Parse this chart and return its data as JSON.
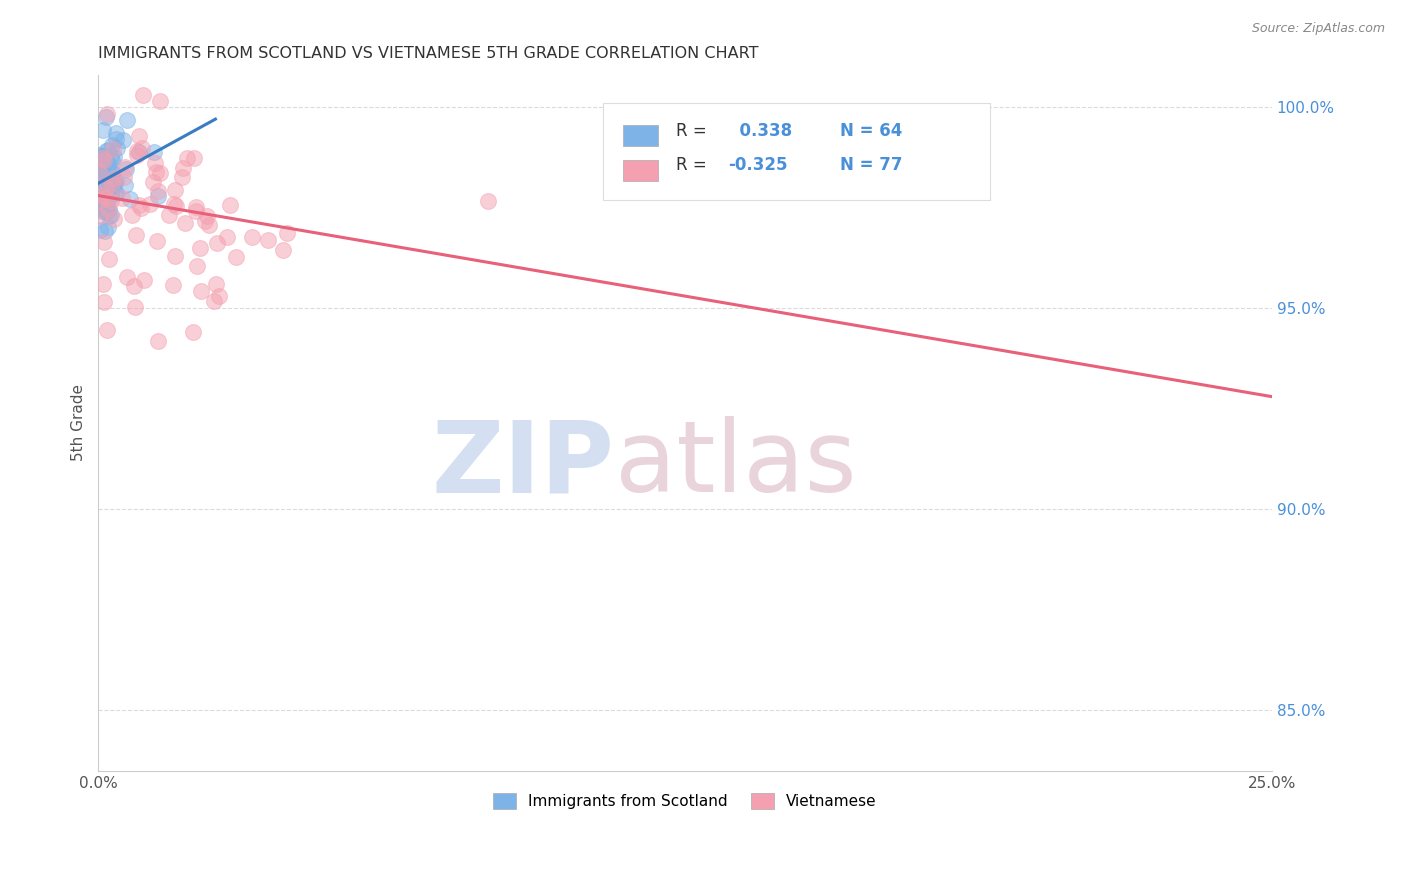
{
  "title": "IMMIGRANTS FROM SCOTLAND VS VIETNAMESE 5TH GRADE CORRELATION CHART",
  "source": "Source: ZipAtlas.com",
  "ylabel": "5th Grade",
  "xmin": 0.0,
  "xmax": 0.25,
  "ymin": 0.835,
  "ymax": 1.008,
  "scotland_R": 0.338,
  "scotland_N": 64,
  "vietnamese_R": -0.325,
  "vietnamese_N": 77,
  "scotland_color": "#7EB3E8",
  "vietnamese_color": "#F4A0B0",
  "scotland_line_color": "#3A7CC4",
  "vietnamese_line_color": "#E8607A",
  "legend_label_scotland": "Immigrants from Scotland",
  "legend_label_vietnamese": "Vietnamese",
  "watermark_zip": "ZIP",
  "watermark_atlas": "atlas",
  "background_color": "#ffffff",
  "grid_color": "#cccccc",
  "title_color": "#333333",
  "axis_label_color": "#555555",
  "right_axis_color": "#4A90D9",
  "legend_R_color": "#4A90D9",
  "ytick_positions": [
    0.85,
    0.9,
    0.95,
    1.0
  ],
  "ytick_labels": [
    "85.0%",
    "90.0%",
    "95.0%",
    "100.0%"
  ],
  "xtick_positions": [
    0.0,
    0.0625,
    0.125,
    0.1875,
    0.25
  ],
  "xtick_labels": [
    "0.0%",
    "",
    "",
    "",
    "25.0%"
  ],
  "scot_line_x": [
    0.0,
    0.025
  ],
  "scot_line_y": [
    0.981,
    0.997
  ],
  "viet_line_x": [
    0.0,
    0.25
  ],
  "viet_line_y": [
    0.978,
    0.928
  ]
}
